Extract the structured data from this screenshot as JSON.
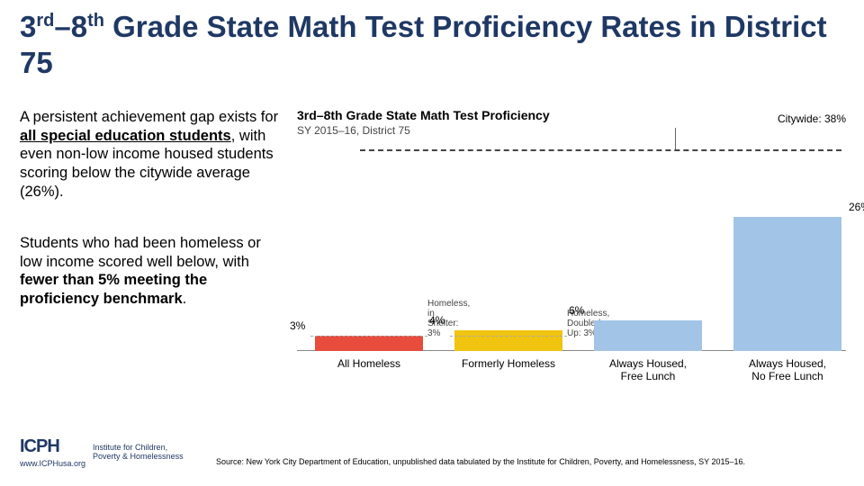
{
  "title": {
    "pre": "3",
    "sup1": "rd",
    "dash": "–8",
    "sup2": "th",
    "rest": " Grade State Math Test Proficiency Rates in District 75"
  },
  "para1": {
    "p1": "A persistent achievement gap exists for ",
    "bold": "all special education students",
    "p2": ", with even non-low income housed students scoring below the citywide average (26%)."
  },
  "para2": {
    "p1": "Students who had been homeless or low income scored well below, with ",
    "bold": "fewer than 5% meeting the proficiency benchmark",
    "p2": "."
  },
  "chart": {
    "title": "3rd–8th Grade State Math Test Proficiency",
    "subtitle": "SY 2015–16, District 75",
    "citywide_label": "Citywide: 38%",
    "ylim": [
      0,
      40
    ],
    "axis_color": "#888888",
    "dash_color": "#444444",
    "categories": [
      {
        "name": "All Homeless",
        "value": 3,
        "label": "3%",
        "color": "#e74c3c",
        "x": 20,
        "sub": {
          "text1": "Homeless, in",
          "text2": "Shelter: 3%",
          "y": 200
        }
      },
      {
        "name": "Formerly Homeless",
        "value": 4,
        "label": "4%",
        "color": "#f1c40f",
        "x": 175,
        "sub": {
          "text1": "Homeless,",
          "text2": "Doubled Up: 3%",
          "y": 200
        }
      },
      {
        "name": "Always Housed,\nFree Lunch",
        "value": 6,
        "label": "6%",
        "color": "#a2c4e6",
        "x": 330
      },
      {
        "name": "Always Housed,\nNo Free Lunch",
        "value": 26,
        "label": "26%",
        "color": "#a2c4e6",
        "x": 485
      }
    ]
  },
  "logo": {
    "mark": "ICPH",
    "line1": "Institute for Children,",
    "line2": "Poverty & Homelessness",
    "url": "www.ICPHusa.org"
  },
  "source": "Source: New York City Department of Education, unpublished data tabulated by the Institute for Children, Poverty, and Homelessness, SY 2015–16."
}
